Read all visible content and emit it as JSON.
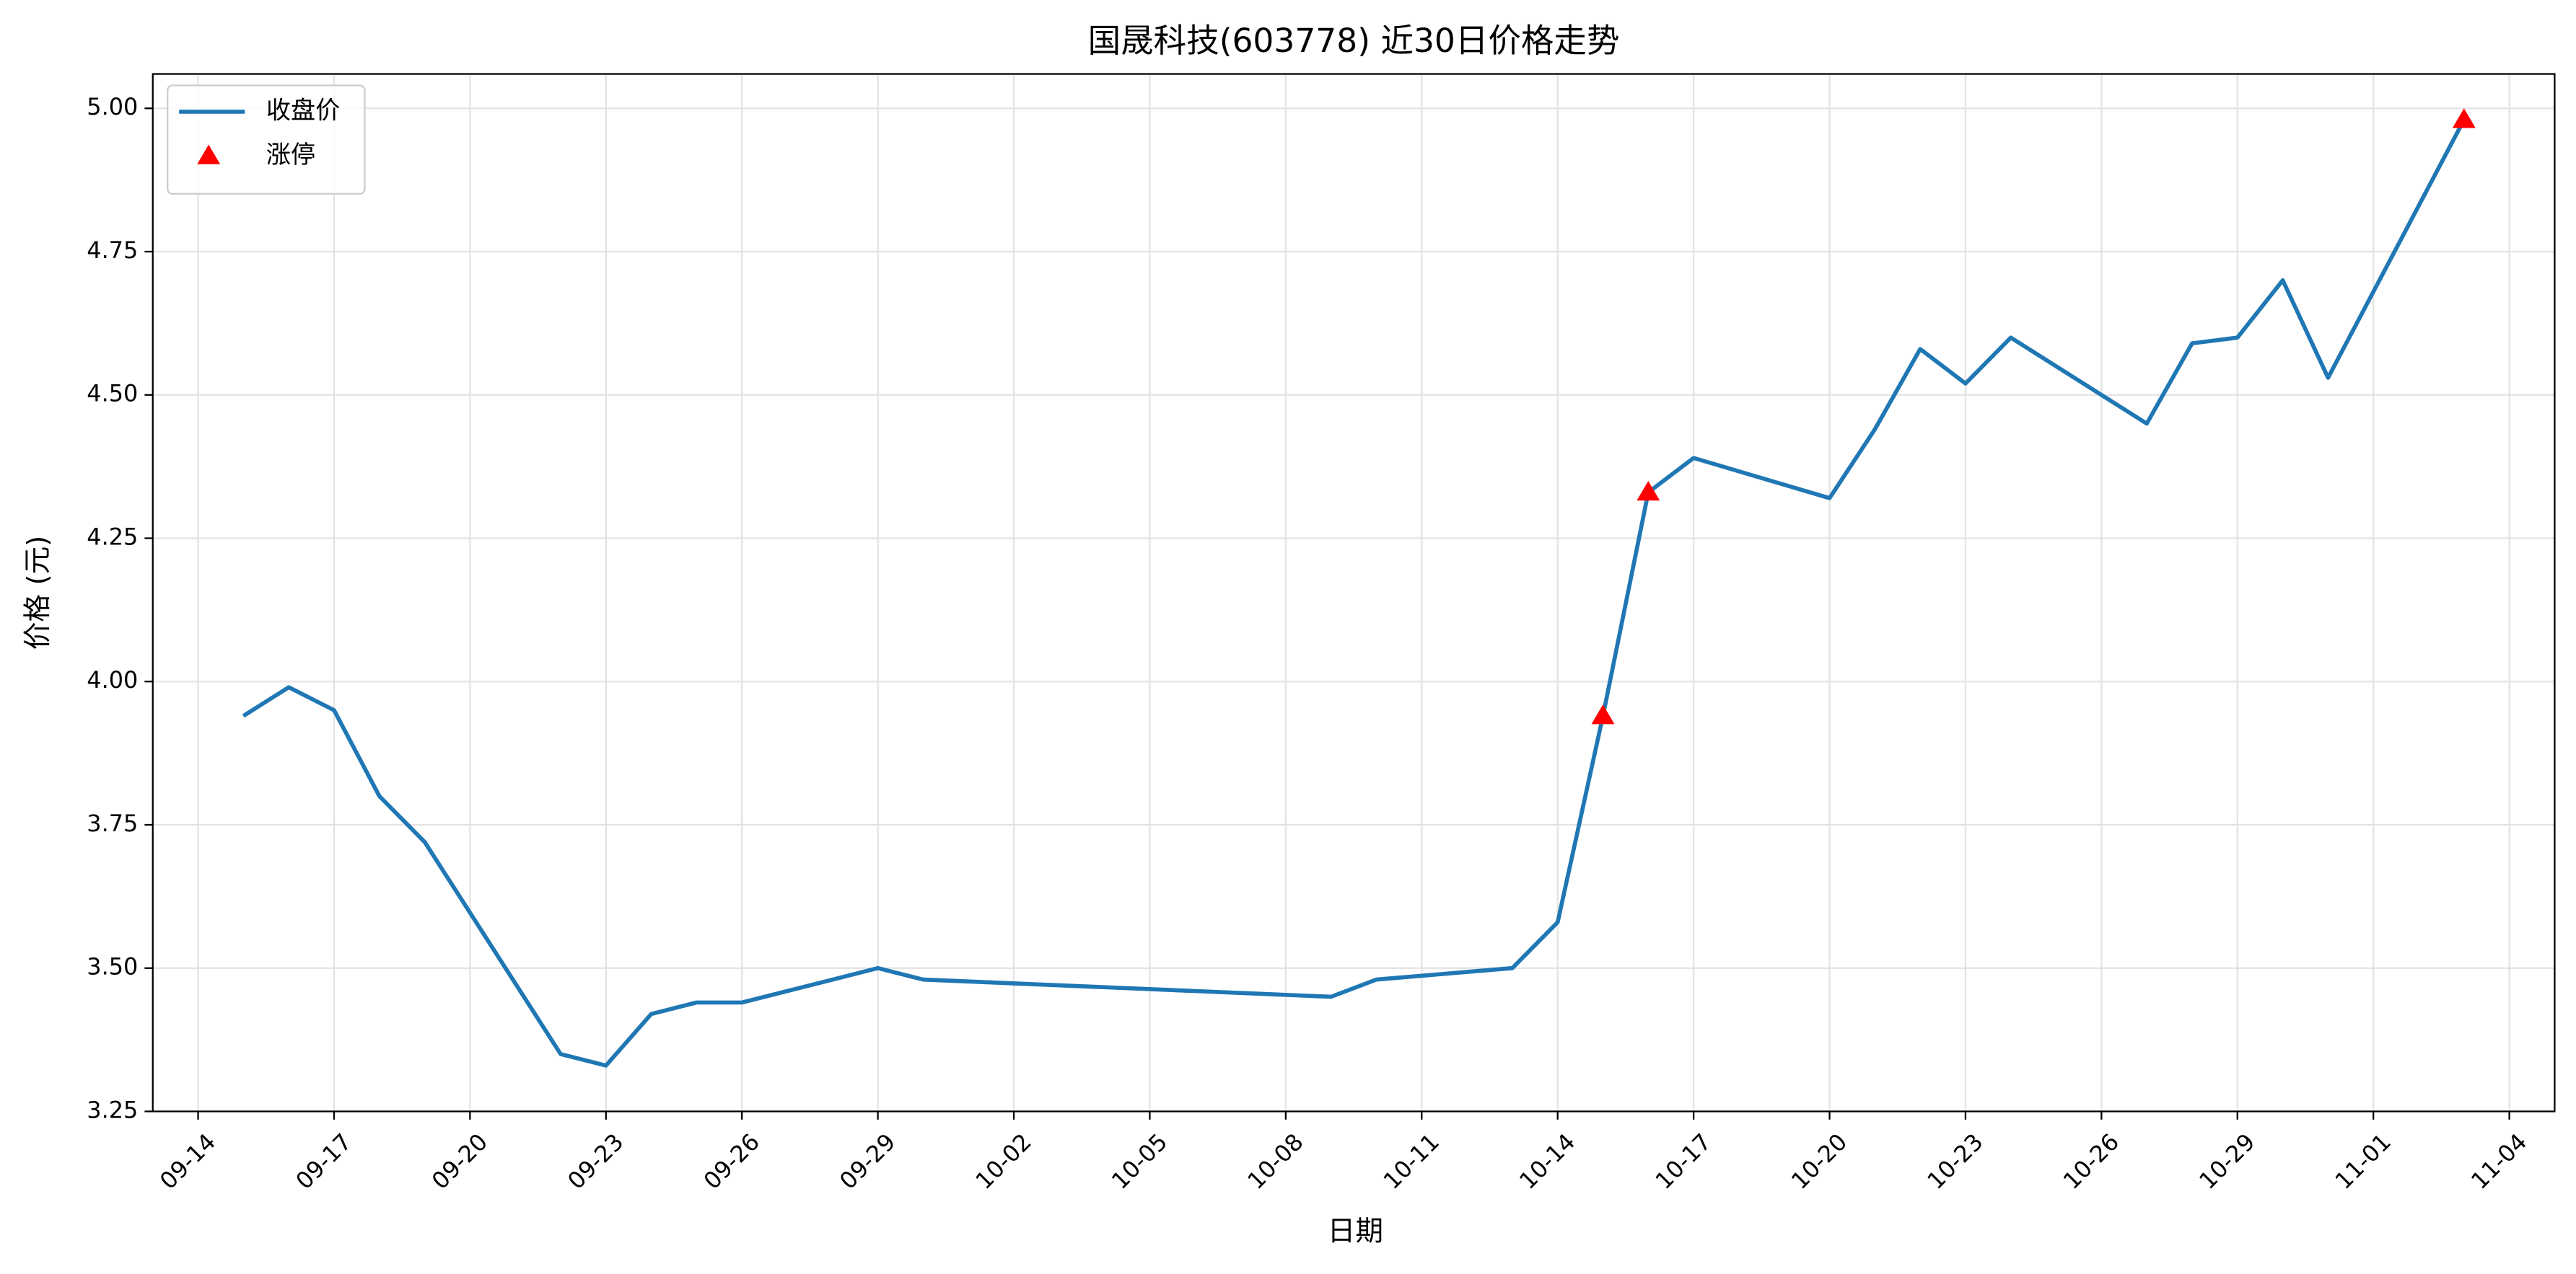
{
  "chart_data": {
    "type": "line",
    "title": "国晟科技(603778) 近30日价格走势",
    "xlabel": "日期",
    "ylabel": "价格 (元)",
    "x": [
      "09-15",
      "09-16",
      "09-17",
      "09-18",
      "09-19",
      "09-22",
      "09-23",
      "09-24",
      "09-25",
      "09-26",
      "09-29",
      "09-30",
      "10-09",
      "10-10",
      "10-13",
      "10-14",
      "10-15",
      "10-16",
      "10-17",
      "10-20",
      "10-21",
      "10-22",
      "10-23",
      "10-24",
      "10-27",
      "10-28",
      "10-29",
      "10-30",
      "10-31",
      "11-03"
    ],
    "series": [
      {
        "name": "收盘价",
        "type": "line",
        "color": "#1f77b4",
        "values": [
          3.94,
          3.99,
          3.95,
          3.8,
          3.72,
          3.35,
          3.33,
          3.42,
          3.44,
          3.44,
          3.5,
          3.48,
          3.45,
          3.48,
          3.5,
          3.58,
          3.94,
          4.33,
          4.39,
          4.32,
          4.44,
          4.58,
          4.52,
          4.6,
          4.45,
          4.59,
          4.6,
          4.7,
          4.53,
          4.98
        ]
      },
      {
        "name": "涨停",
        "type": "scatter",
        "marker": "triangle",
        "color": "#ff0000",
        "x": [
          "10-15",
          "10-16",
          "11-03"
        ],
        "values": [
          3.94,
          4.33,
          4.98
        ]
      }
    ],
    "xlim": [
      "09-13",
      "11-05"
    ],
    "ylim": [
      3.25,
      5.06
    ],
    "xticks": [
      "09-14",
      "09-17",
      "09-20",
      "09-23",
      "09-26",
      "09-29",
      "10-02",
      "10-05",
      "10-08",
      "10-11",
      "10-14",
      "10-17",
      "10-20",
      "10-23",
      "10-26",
      "10-29",
      "11-01",
      "11-04"
    ],
    "yticks": [
      3.25,
      {
        "value": 3.5,
        "label": "3.50"
      },
      3.75,
      {
        "value": 4,
        "label": "4.00"
      },
      4.25,
      {
        "value": 4.5,
        "label": "4.50"
      },
      4.75,
      {
        "value": 5,
        "label": "5.00"
      }
    ],
    "grid": true,
    "legend": "upper left"
  }
}
